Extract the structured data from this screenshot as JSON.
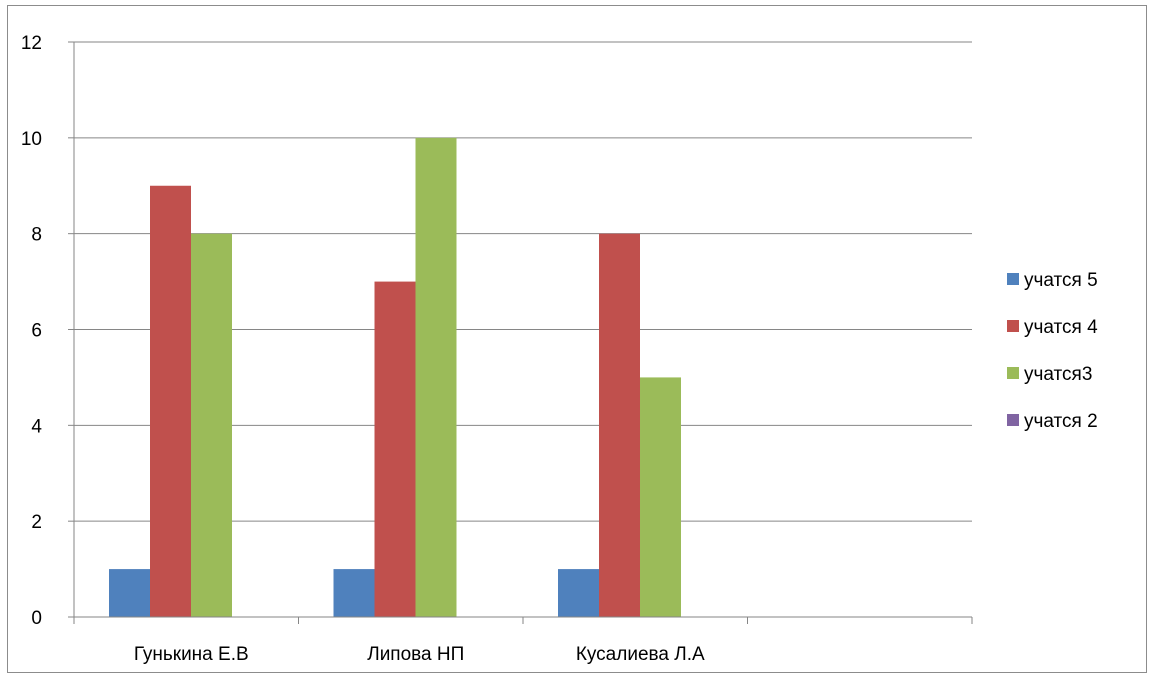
{
  "chart_data": {
    "type": "bar",
    "categories": [
      "Гунькина Е.В",
      "Липова НП",
      "Кусалиева Л.А",
      ""
    ],
    "series": [
      {
        "name": "учатся 5",
        "color": "#4f81bd",
        "values": [
          1,
          1,
          1,
          null
        ]
      },
      {
        "name": "учатся  4",
        "color": "#c0504d",
        "values": [
          9,
          7,
          8,
          null
        ]
      },
      {
        "name": "учатся3",
        "color": "#9bbb59",
        "values": [
          8,
          10,
          5,
          null
        ]
      },
      {
        "name": "учатся 2",
        "color": "#8064a2",
        "values": [
          null,
          null,
          null,
          null
        ]
      }
    ],
    "yticks": [
      "0",
      "2",
      "4",
      "6",
      "8",
      "10",
      "12"
    ],
    "ylim": [
      0,
      12
    ],
    "grid": true,
    "legend": "right"
  }
}
